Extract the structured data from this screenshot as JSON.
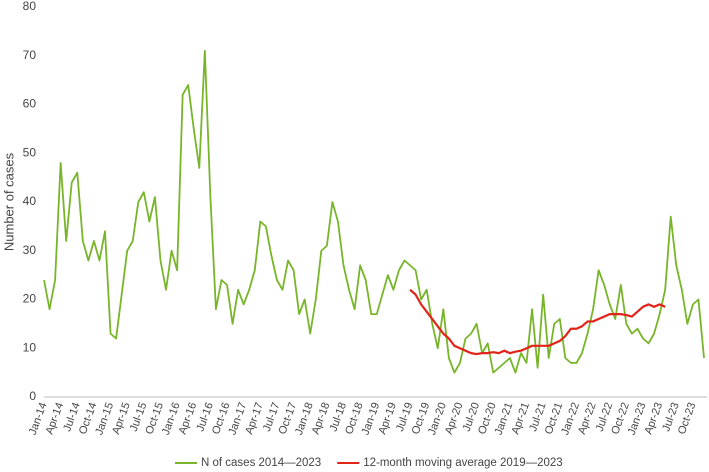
{
  "chart_data": {
    "type": "line",
    "y_label": "Number of cases",
    "categories": [
      "Jan-14",
      null,
      null,
      "Apr-14",
      null,
      null,
      "Jul-14",
      null,
      null,
      "Oct-14",
      null,
      null,
      "Jan-15",
      null,
      null,
      "Apr-15",
      null,
      null,
      "Jul-15",
      null,
      null,
      "Oct-15",
      null,
      null,
      "Jan-16",
      null,
      null,
      "Apr-16",
      null,
      null,
      "Jul-16",
      null,
      null,
      "Oct-16",
      null,
      null,
      "Jan-17",
      null,
      null,
      "Apr-17",
      null,
      null,
      "Jul-17",
      null,
      null,
      "Oct-17",
      null,
      null,
      "Jan-18",
      null,
      null,
      "Apr-18",
      null,
      null,
      "Jul-18",
      null,
      null,
      "Oct-18",
      null,
      null,
      "Jan-19",
      null,
      null,
      "Apr-19",
      null,
      null,
      "Jul-19",
      null,
      null,
      "Oct-19",
      null,
      null,
      "Jan-20",
      null,
      null,
      "Apr-20",
      null,
      null,
      "Jul-20",
      null,
      null,
      "Oct-20",
      null,
      null,
      "Jan-21",
      null,
      null,
      "Apr-21",
      null,
      null,
      "Jul-21",
      null,
      null,
      "Oct-21",
      null,
      null,
      "Jan-22",
      null,
      null,
      "Apr-22",
      null,
      null,
      "Jul-22",
      null,
      null,
      "Oct-22",
      null,
      null,
      "Jan-23",
      null,
      null,
      "Apr-23",
      null,
      null,
      "Jul-23",
      null,
      null,
      "Oct-23",
      null,
      null
    ],
    "series": [
      {
        "name": "N of cases 2014—2023",
        "color": "#78b52a",
        "values": [
          24,
          18,
          24,
          48,
          32,
          44,
          46,
          32,
          28,
          32,
          28,
          34,
          13,
          12,
          21,
          30,
          32,
          40,
          42,
          36,
          41,
          28,
          22,
          30,
          26,
          62,
          64,
          55,
          47,
          71,
          41,
          18,
          24,
          23,
          15,
          22,
          19,
          22,
          26,
          36,
          35,
          29,
          24,
          22,
          28,
          26,
          17,
          20,
          13,
          20,
          30,
          31,
          40,
          36,
          27,
          22,
          18,
          27,
          24,
          17,
          17,
          21,
          25,
          22,
          26,
          28,
          27,
          26,
          20,
          22,
          15,
          10,
          18,
          8,
          5,
          7,
          12,
          13,
          15,
          9,
          11,
          5,
          6,
          7,
          8,
          5,
          9,
          7,
          18,
          6,
          21,
          8,
          15,
          16,
          8,
          7,
          7,
          9,
          13,
          18,
          26,
          23,
          19,
          16,
          23,
          15,
          13,
          14,
          12,
          11,
          13,
          17,
          22,
          37,
          27,
          22,
          15,
          19,
          20,
          8
        ]
      },
      {
        "name": "12-month moving average 2019—2023",
        "color": "#e2231a",
        "values": [
          null,
          null,
          null,
          null,
          null,
          null,
          null,
          null,
          null,
          null,
          null,
          null,
          null,
          null,
          null,
          null,
          null,
          null,
          null,
          null,
          null,
          null,
          null,
          null,
          null,
          null,
          null,
          null,
          null,
          null,
          null,
          null,
          null,
          null,
          null,
          null,
          null,
          null,
          null,
          null,
          null,
          null,
          null,
          null,
          null,
          null,
          null,
          null,
          null,
          null,
          null,
          null,
          null,
          null,
          null,
          null,
          null,
          null,
          null,
          null,
          null,
          null,
          null,
          null,
          null,
          null,
          22,
          21,
          19,
          17.5,
          16,
          14.5,
          13,
          12,
          10.5,
          10,
          9.5,
          9,
          8.8,
          9,
          9,
          9.2,
          9,
          9.5,
          9,
          9.3,
          9.5,
          10,
          10.5,
          10.5,
          10.5,
          10.5,
          11,
          11.5,
          12.5,
          14,
          14,
          14.5,
          15.5,
          15.5,
          16,
          16.5,
          17,
          17,
          17,
          16.8,
          16.5,
          17.5,
          18.5,
          19,
          18.5,
          19,
          18.5,
          null,
          null,
          null,
          null,
          null,
          null,
          null
        ]
      }
    ],
    "ylim": [
      0,
      80
    ],
    "yticks": [
      0,
      10,
      20,
      30,
      40,
      50,
      60,
      70,
      80
    ],
    "grid": false,
    "legend": "bottom"
  }
}
